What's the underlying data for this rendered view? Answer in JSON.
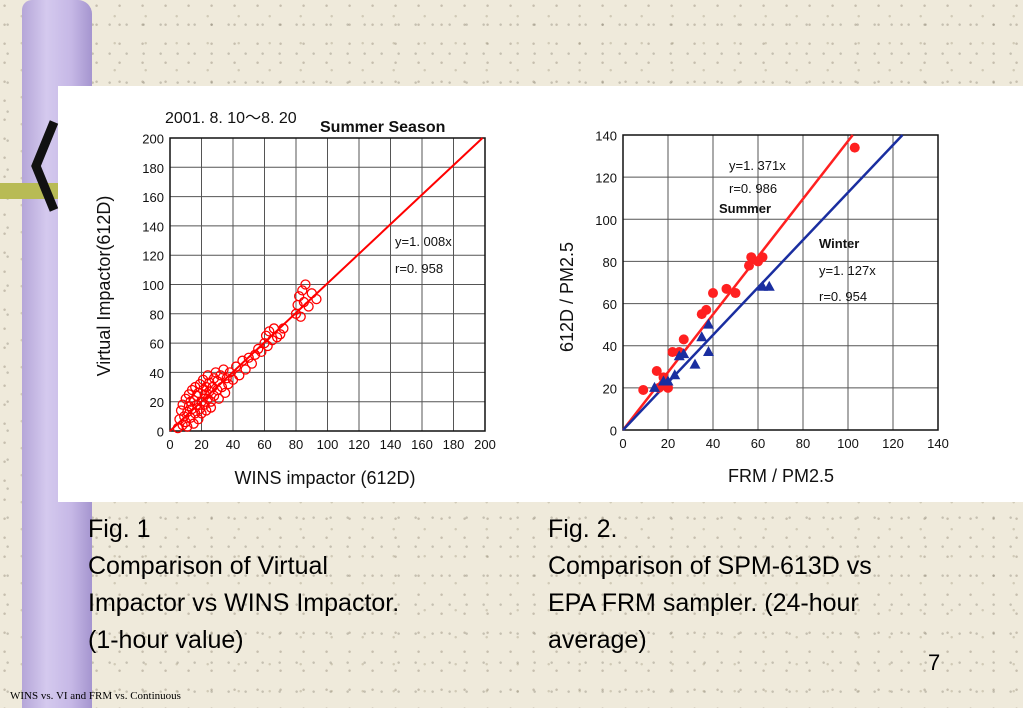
{
  "chart_data": [
    {
      "type": "scatter",
      "date_label": "2001. 8. 10〜8. 20",
      "title": "Summer Season",
      "xlabel": "WINS  impactor (612D)",
      "ylabel": "Virtual Impactor(612D)",
      "xlim": [
        0,
        200
      ],
      "ylim": [
        0,
        200
      ],
      "x_ticks": [
        0,
        20,
        40,
        60,
        80,
        100,
        120,
        140,
        160,
        180,
        200
      ],
      "y_ticks": [
        0,
        20,
        40,
        60,
        80,
        100,
        120,
        140,
        160,
        180,
        200
      ],
      "grid": true,
      "marker": "open-circle",
      "color": "#ff0000",
      "fit": {
        "slope": 1.008,
        "equation": "y=1. 008x",
        "r": "r=0. 958"
      },
      "points": [
        [
          5,
          2
        ],
        [
          6,
          8
        ],
        [
          7,
          14
        ],
        [
          8,
          4
        ],
        [
          8,
          18
        ],
        [
          9,
          10
        ],
        [
          10,
          6
        ],
        [
          10,
          22
        ],
        [
          11,
          13
        ],
        [
          11,
          3
        ],
        [
          12,
          17
        ],
        [
          12,
          25
        ],
        [
          13,
          9
        ],
        [
          13,
          20
        ],
        [
          14,
          15
        ],
        [
          14,
          28
        ],
        [
          15,
          5
        ],
        [
          15,
          21
        ],
        [
          16,
          12
        ],
        [
          16,
          30
        ],
        [
          17,
          18
        ],
        [
          17,
          24
        ],
        [
          18,
          8
        ],
        [
          18,
          26
        ],
        [
          19,
          15
        ],
        [
          19,
          32
        ],
        [
          20,
          20
        ],
        [
          20,
          12
        ],
        [
          21,
          28
        ],
        [
          21,
          35
        ],
        [
          22,
          18
        ],
        [
          22,
          25
        ],
        [
          23,
          30
        ],
        [
          23,
          14
        ],
        [
          24,
          22
        ],
        [
          24,
          38
        ],
        [
          25,
          27
        ],
        [
          25,
          33
        ],
        [
          26,
          20
        ],
        [
          26,
          16
        ],
        [
          27,
          30
        ],
        [
          28,
          36
        ],
        [
          28,
          24
        ],
        [
          29,
          40
        ],
        [
          30,
          28
        ],
        [
          30,
          34
        ],
        [
          31,
          22
        ],
        [
          32,
          38
        ],
        [
          33,
          30
        ],
        [
          34,
          42
        ],
        [
          35,
          26
        ],
        [
          36,
          36
        ],
        [
          37,
          32
        ],
        [
          38,
          40
        ],
        [
          40,
          35
        ],
        [
          42,
          44
        ],
        [
          44,
          38
        ],
        [
          46,
          48
        ],
        [
          48,
          42
        ],
        [
          50,
          50
        ],
        [
          52,
          46
        ],
        [
          54,
          52
        ],
        [
          56,
          56
        ],
        [
          58,
          54
        ],
        [
          60,
          60
        ],
        [
          61,
          65
        ],
        [
          62,
          58
        ],
        [
          63,
          68
        ],
        [
          65,
          62
        ],
        [
          66,
          70
        ],
        [
          68,
          64
        ],
        [
          70,
          66
        ],
        [
          72,
          70
        ],
        [
          80,
          80
        ],
        [
          81,
          86
        ],
        [
          82,
          92
        ],
        [
          83,
          78
        ],
        [
          84,
          96
        ],
        [
          85,
          88
        ],
        [
          86,
          100
        ],
        [
          88,
          85
        ],
        [
          90,
          94
        ],
        [
          93,
          90
        ]
      ]
    },
    {
      "type": "scatter",
      "xlabel": "FRM / PM2.5",
      "ylabel": "612D / PM2.5",
      "xlim": [
        0,
        140
      ],
      "ylim": [
        0,
        140
      ],
      "x_ticks": [
        0,
        20,
        40,
        60,
        80,
        100,
        120,
        140
      ],
      "y_ticks": [
        0,
        20,
        40,
        60,
        80,
        100,
        120,
        140
      ],
      "grid": true,
      "series": [
        {
          "name": "Summer",
          "color": "#ff2020",
          "marker": "filled-circle",
          "fit": {
            "slope": 1.371,
            "equation": "y=1. 371x",
            "r": "r=0. 986"
          },
          "points": [
            [
              9,
              19
            ],
            [
              15,
              28
            ],
            [
              16,
              20
            ],
            [
              18,
              25
            ],
            [
              20,
              20
            ],
            [
              22,
              37
            ],
            [
              25,
              37
            ],
            [
              27,
              43
            ],
            [
              35,
              55
            ],
            [
              37,
              57
            ],
            [
              40,
              65
            ],
            [
              46,
              67
            ],
            [
              50,
              65
            ],
            [
              56,
              78
            ],
            [
              57,
              82
            ],
            [
              60,
              80
            ],
            [
              62,
              82
            ],
            [
              103,
              134
            ]
          ]
        },
        {
          "name": "Winter",
          "color": "#1a2ea0",
          "marker": "filled-triangle",
          "fit": {
            "slope": 1.127,
            "equation": "y=1. 127x",
            "r": "r=0. 954"
          },
          "points": [
            [
              14,
              20
            ],
            [
              18,
              23
            ],
            [
              20,
              23
            ],
            [
              23,
              26
            ],
            [
              25,
              35
            ],
            [
              27,
              36
            ],
            [
              32,
              31
            ],
            [
              35,
              44
            ],
            [
              38,
              50
            ],
            [
              38,
              37
            ],
            [
              62,
              68
            ],
            [
              65,
              68
            ]
          ]
        }
      ]
    }
  ],
  "captions": {
    "left": [
      "Fig. 1",
      "Comparison of Virtual",
      "Impactor vs WINS Impactor.",
      "(1-hour value)"
    ],
    "right": [
      "Fig. 2.",
      "Comparison of SPM-613D vs",
      "EPA FRM sampler. (24-hour",
      "average)"
    ]
  },
  "slide_number": "7",
  "footer": "WINS vs. VI and FRM vs. Continuous"
}
